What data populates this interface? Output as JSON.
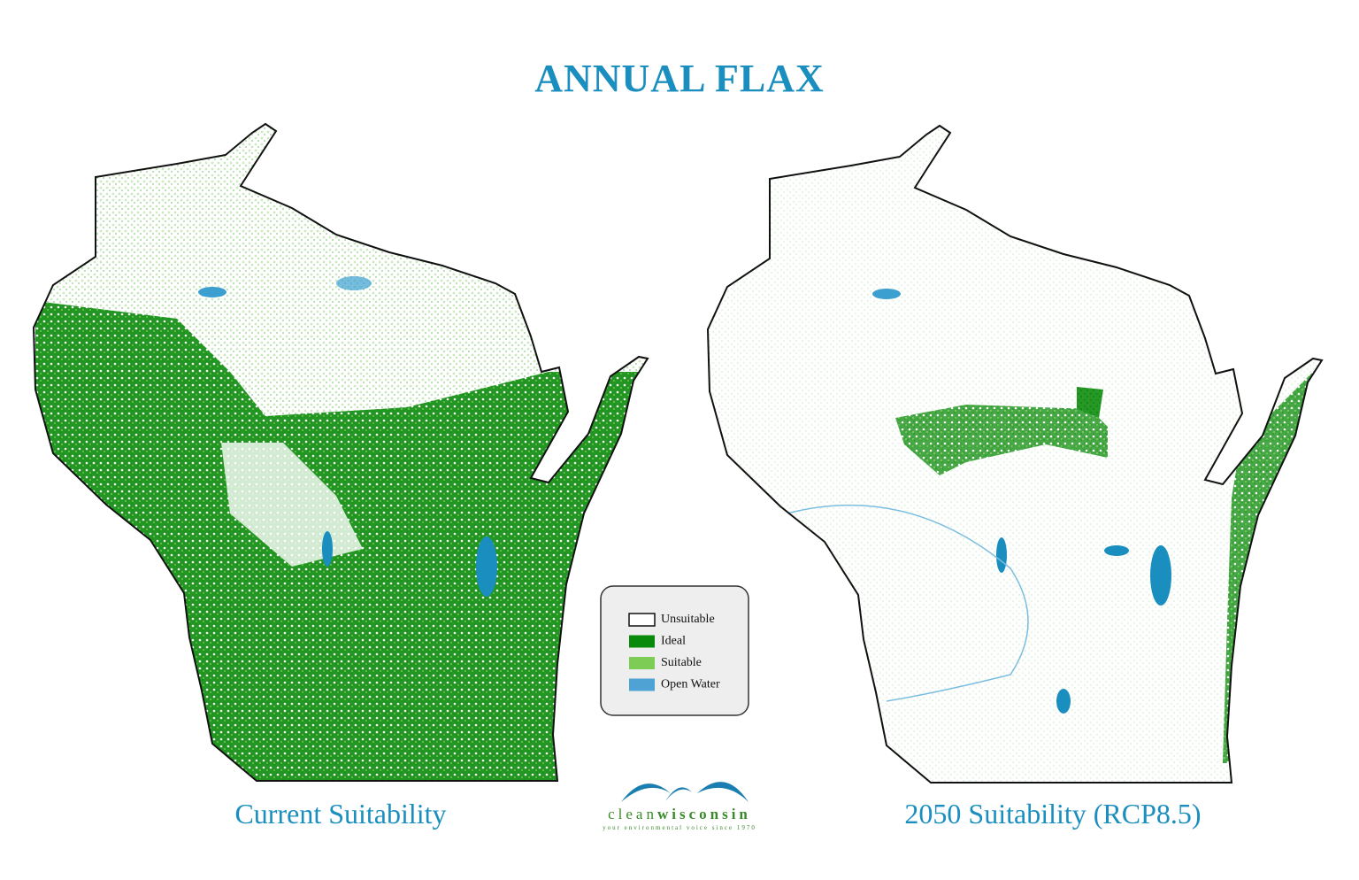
{
  "title": "ANNUAL FLAX",
  "maps": [
    {
      "caption": "Current Suitability"
    },
    {
      "caption": "2050 Suitability (RCP8.5)"
    }
  ],
  "legend": {
    "items": [
      {
        "label": "Unsuitable",
        "color": "#ffffff"
      },
      {
        "label": "Ideal",
        "color": "#0a8a0a"
      },
      {
        "label": "Suitable",
        "color": "#7ccc55"
      },
      {
        "label": "Open Water",
        "color": "#4fa3d4"
      }
    ]
  },
  "logo": {
    "name_light": "clean",
    "name_bold": "wisconsin",
    "tagline": "your environmental voice since 1970"
  }
}
